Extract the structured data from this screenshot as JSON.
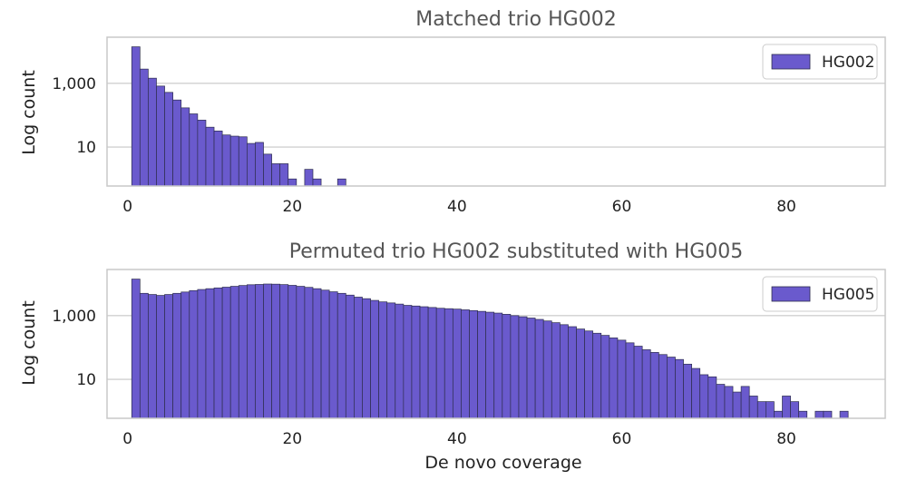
{
  "chart_data": [
    {
      "type": "bar",
      "title": "Matched trio HG002",
      "xlabel": "",
      "ylabel": "Log count",
      "yscale": "log",
      "xlim": [
        -2.5,
        92
      ],
      "ylim": [
        0.6,
        28000
      ],
      "xticks": [
        0,
        20,
        40,
        60,
        80
      ],
      "yticks": [
        10,
        1000
      ],
      "ytick_labels": [
        "10",
        "1,000"
      ],
      "grid": "horizontal",
      "legend_position": "top-right",
      "bin_width": 1,
      "color": "#6a5acd",
      "series": [
        {
          "name": "HG002",
          "x": [
            1,
            2,
            3,
            4,
            5,
            6,
            7,
            8,
            9,
            10,
            11,
            12,
            13,
            14,
            15,
            16,
            17,
            18,
            19,
            20,
            21,
            22,
            23,
            24,
            25,
            26
          ],
          "values": [
            14000,
            2800,
            1450,
            820,
            520,
            300,
            170,
            110,
            70,
            42,
            32,
            24,
            22,
            21,
            13,
            14,
            6,
            3,
            3,
            1,
            0,
            2,
            1,
            0,
            0,
            1
          ]
        }
      ]
    },
    {
      "type": "bar",
      "title": "Permuted trio HG002 substituted with HG005",
      "xlabel": "De novo coverage",
      "ylabel": "Log count",
      "yscale": "log",
      "xlim": [
        -2.5,
        92
      ],
      "ylim": [
        0.6,
        28000
      ],
      "xticks": [
        0,
        20,
        40,
        60,
        80
      ],
      "yticks": [
        10,
        1000
      ],
      "ytick_labels": [
        "10",
        "1,000"
      ],
      "grid": "horizontal",
      "legend_position": "top-right",
      "bin_width": 1,
      "color": "#6a5acd",
      "series": [
        {
          "name": "HG005",
          "x": [
            1,
            2,
            3,
            4,
            5,
            6,
            7,
            8,
            9,
            10,
            11,
            12,
            13,
            14,
            15,
            16,
            17,
            18,
            19,
            20,
            21,
            22,
            23,
            24,
            25,
            26,
            27,
            28,
            29,
            30,
            31,
            32,
            33,
            34,
            35,
            36,
            37,
            38,
            39,
            40,
            41,
            42,
            43,
            44,
            45,
            46,
            47,
            48,
            49,
            50,
            51,
            52,
            53,
            54,
            55,
            56,
            57,
            58,
            59,
            60,
            61,
            62,
            63,
            64,
            65,
            66,
            67,
            68,
            69,
            70,
            71,
            72,
            73,
            74,
            75,
            76,
            77,
            78,
            79,
            80,
            81,
            82,
            83,
            84,
            85,
            86,
            87
          ],
          "values": [
            14000,
            5000,
            4600,
            4300,
            4600,
            5000,
            5500,
            6100,
            6600,
            7000,
            7400,
            7800,
            8300,
            8800,
            9300,
            9500,
            9800,
            9700,
            9400,
            8900,
            8300,
            7700,
            7000,
            6300,
            5600,
            5000,
            4400,
            3800,
            3400,
            3000,
            2700,
            2500,
            2300,
            2100,
            2000,
            1900,
            1800,
            1700,
            1650,
            1600,
            1520,
            1440,
            1360,
            1280,
            1200,
            1100,
            1000,
            920,
            840,
            760,
            680,
            600,
            520,
            450,
            380,
            330,
            280,
            240,
            200,
            170,
            140,
            110,
            85,
            70,
            60,
            50,
            42,
            30,
            22,
            14,
            12,
            7,
            6,
            4,
            6,
            3,
            2,
            2,
            1,
            3,
            2,
            1,
            0,
            1,
            1,
            0,
            1
          ]
        }
      ]
    }
  ]
}
